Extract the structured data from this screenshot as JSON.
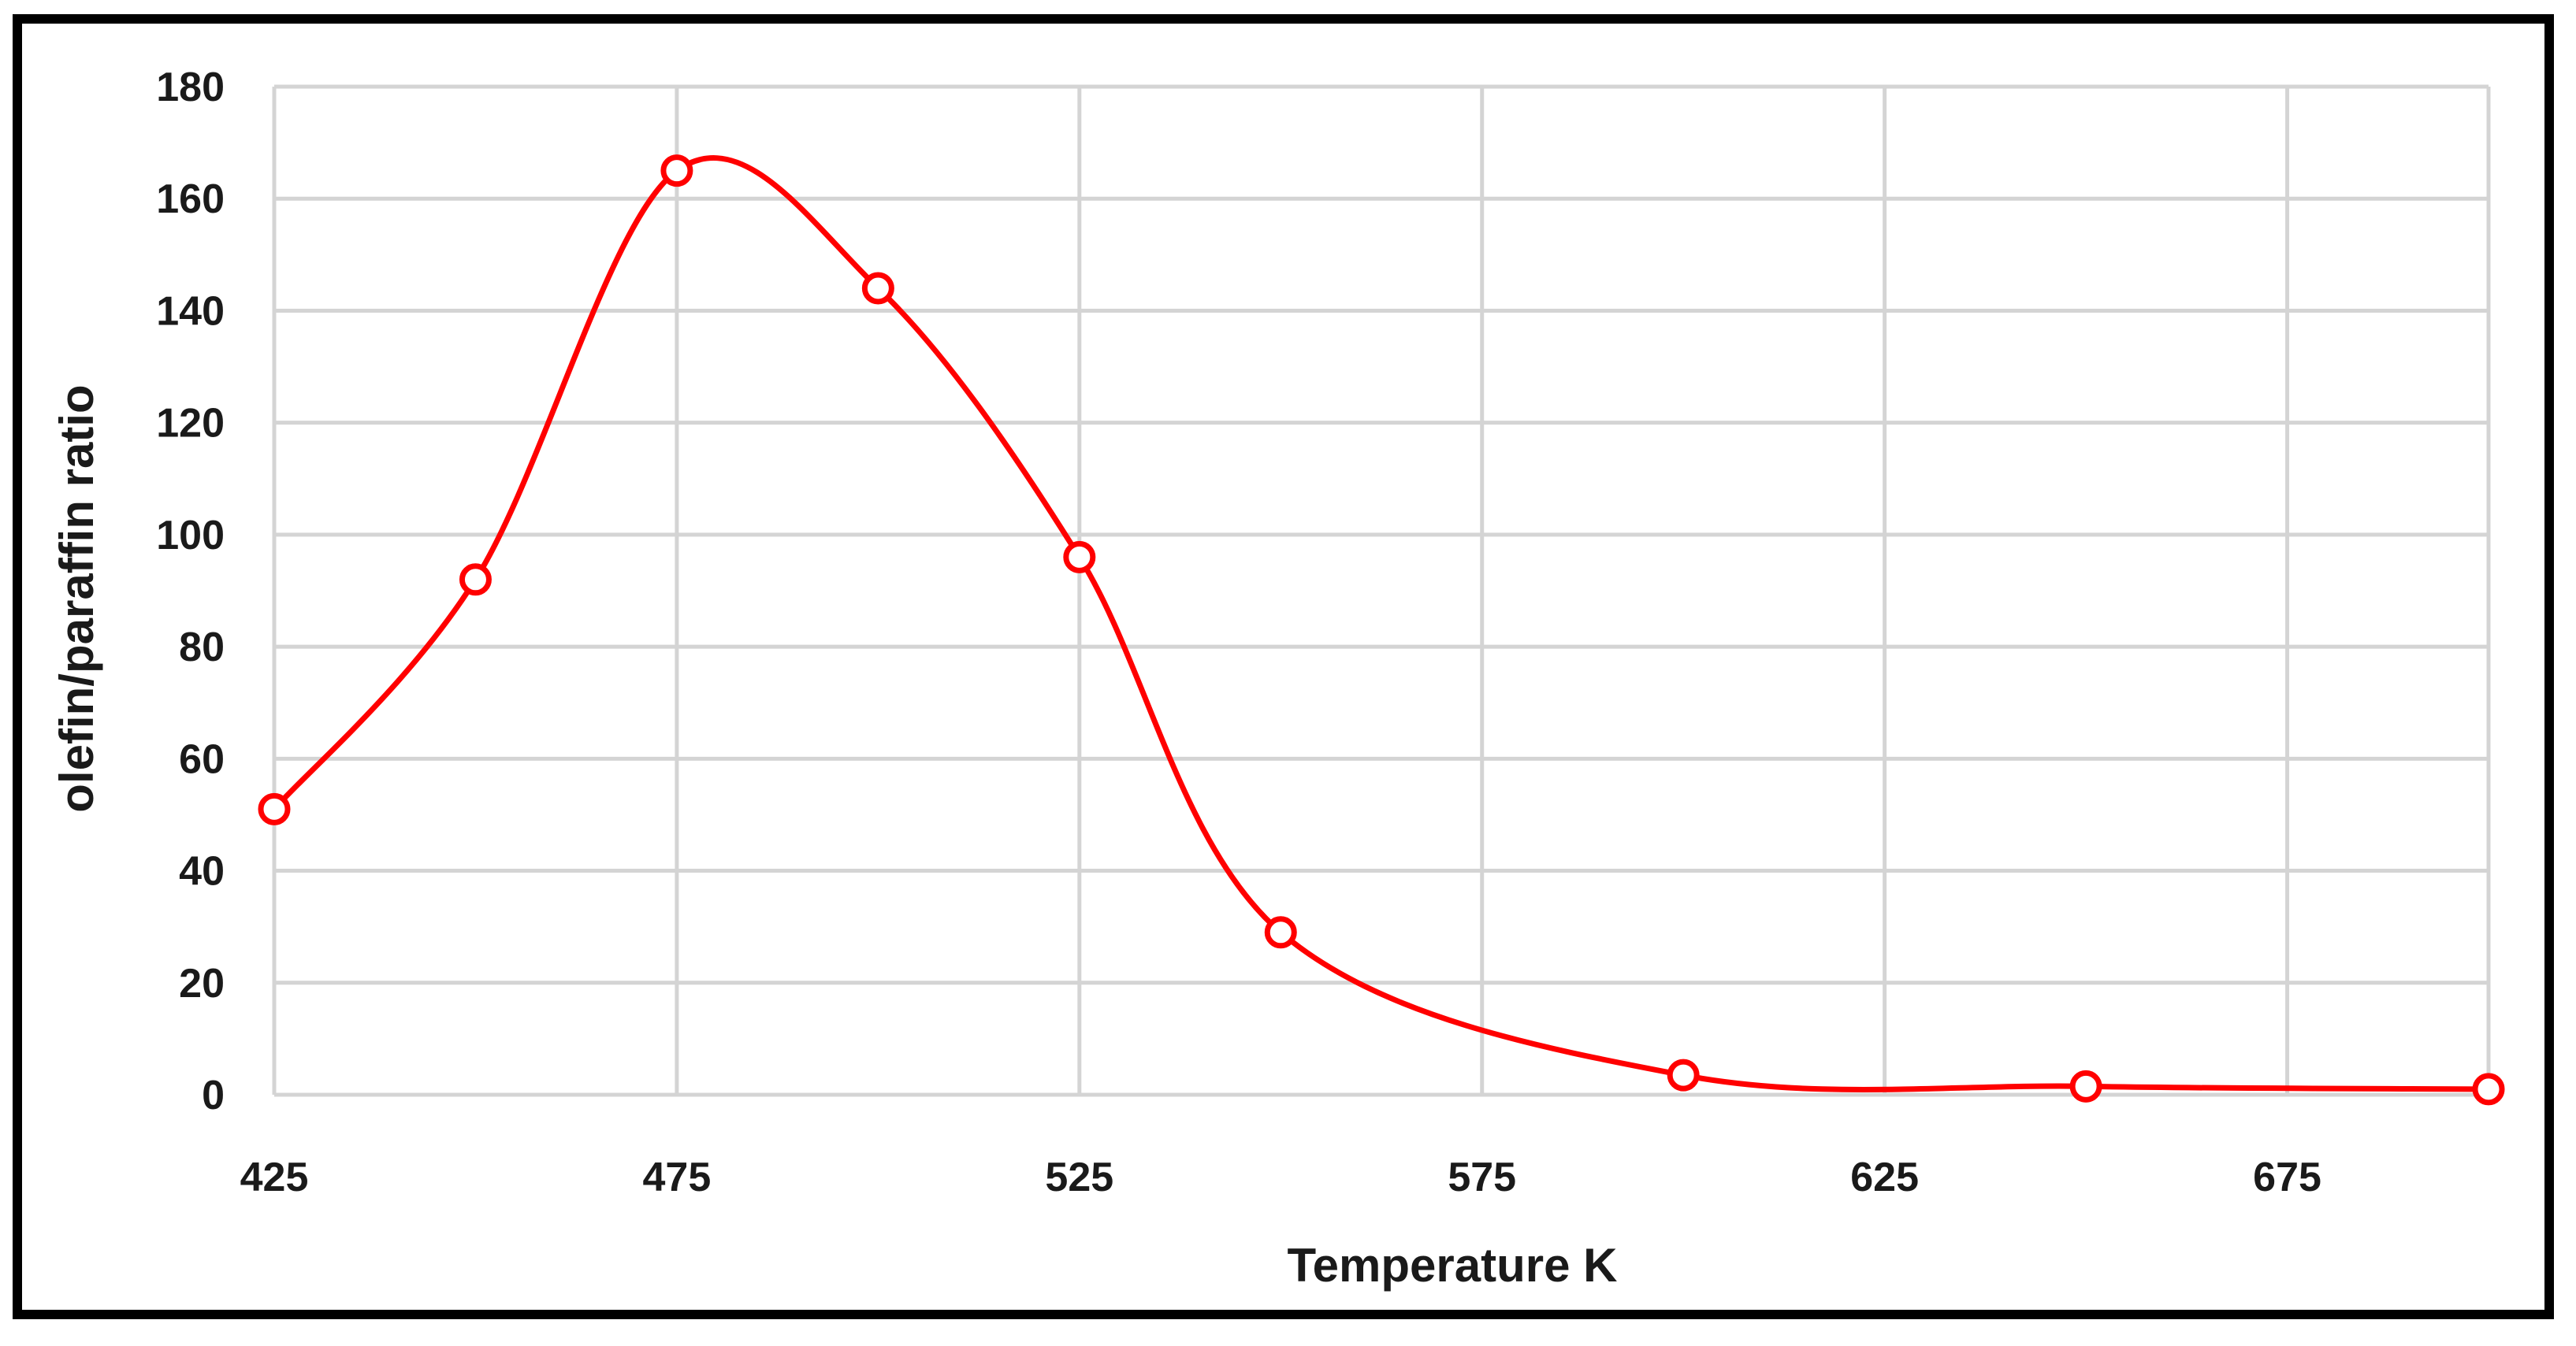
{
  "chart_data": {
    "type": "line",
    "title": "",
    "xlabel": "Temperature K",
    "ylabel": "olefin/paraffin ratio",
    "xlim": [
      425,
      700
    ],
    "ylim": [
      0,
      180
    ],
    "x_ticks": [
      425,
      475,
      525,
      575,
      625,
      675
    ],
    "y_ticks": [
      0,
      20,
      40,
      60,
      80,
      100,
      120,
      140,
      160,
      180
    ],
    "grid": true,
    "legend": "none",
    "series": [
      {
        "color": "#ff0000",
        "marker": "open-circle",
        "smooth": true,
        "x": [
          425,
          450,
          475,
          500,
          525,
          550,
          600,
          650,
          700
        ],
        "y": [
          51,
          92,
          165,
          144,
          96,
          29,
          3.5,
          1.5,
          1
        ]
      }
    ]
  }
}
